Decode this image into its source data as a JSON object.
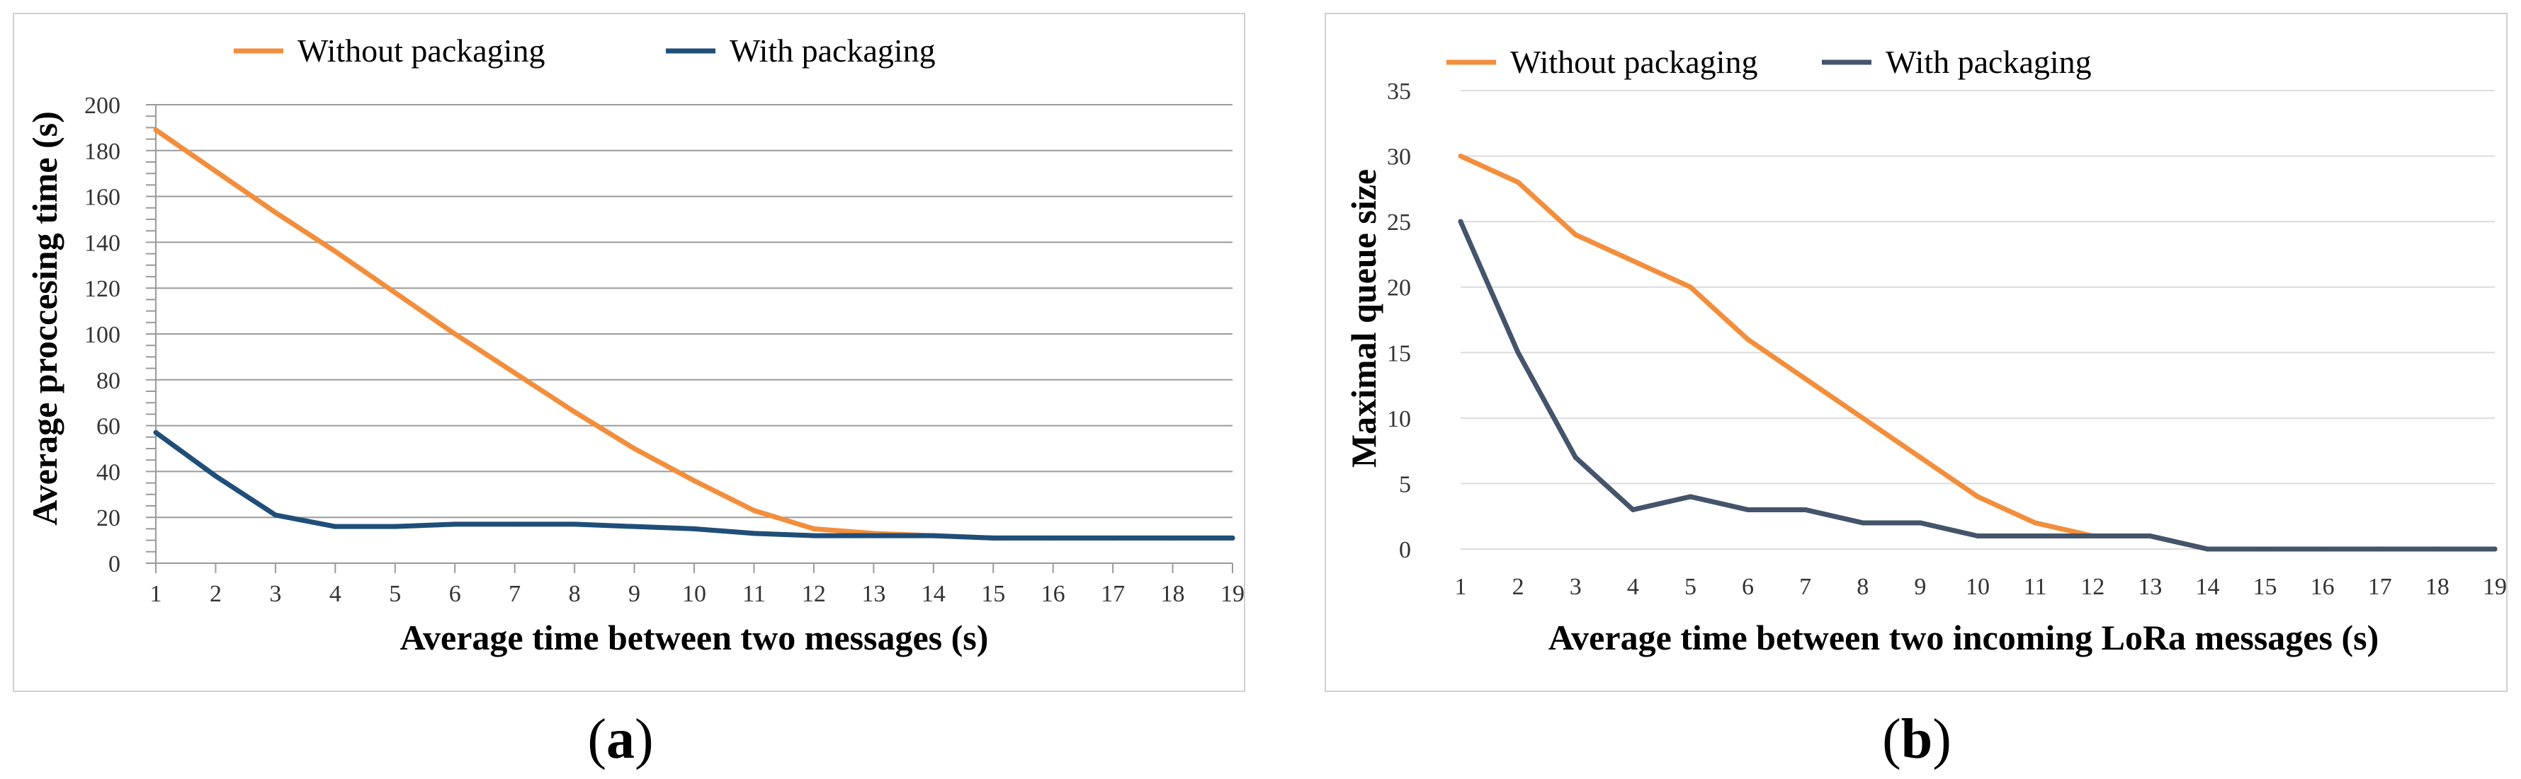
{
  "chart_data": [
    {
      "type": "line",
      "title": "",
      "xlabel": "Average time between two messages (s)",
      "ylabel": "Average proccesing time (s)",
      "x": [
        1,
        2,
        3,
        4,
        5,
        6,
        7,
        8,
        9,
        10,
        11,
        12,
        13,
        14,
        15,
        16,
        17,
        18,
        19
      ],
      "xlim": [
        1,
        19
      ],
      "ylim": [
        0,
        200
      ],
      "yticks": [
        0,
        20,
        40,
        60,
        80,
        100,
        120,
        140,
        160,
        180,
        200
      ],
      "grid": true,
      "legend_position": "top",
      "series": [
        {
          "name": "Without packaging",
          "color": "#f28e3c",
          "values": [
            189,
            171,
            153,
            136,
            118,
            100,
            83,
            66,
            50,
            36,
            23,
            15,
            13,
            12,
            11,
            11,
            11,
            11,
            11
          ]
        },
        {
          "name": "With packaging",
          "color": "#1f4e79",
          "values": [
            57,
            38,
            21,
            16,
            16,
            17,
            17,
            17,
            16,
            15,
            13,
            12,
            12,
            12,
            11,
            11,
            11,
            11,
            11
          ]
        }
      ]
    },
    {
      "type": "line",
      "title": "",
      "xlabel": "Average time between two incoming LoRa messages (s)",
      "ylabel": "Maximal queue size",
      "x": [
        1,
        2,
        3,
        4,
        5,
        6,
        7,
        8,
        9,
        10,
        11,
        12,
        13,
        14,
        15,
        16,
        17,
        18,
        19
      ],
      "xlim": [
        1,
        19
      ],
      "ylim": [
        0,
        35
      ],
      "yticks": [
        0,
        5,
        10,
        15,
        20,
        25,
        30,
        35
      ],
      "grid": true,
      "legend_position": "top",
      "series": [
        {
          "name": "Without packaging",
          "color": "#f28e3c",
          "values": [
            30,
            28,
            24,
            22,
            20,
            16,
            13,
            10,
            7,
            4,
            2,
            1,
            1,
            0,
            0,
            0,
            0,
            0,
            0
          ]
        },
        {
          "name": "With packaging",
          "color": "#44546a",
          "values": [
            25,
            15,
            7,
            3,
            4,
            3,
            3,
            2,
            2,
            1,
            1,
            1,
            1,
            0,
            0,
            0,
            0,
            0,
            0
          ]
        }
      ]
    }
  ],
  "panel_labels": [
    {
      "open": "(",
      "letter": "a",
      "close": ")"
    },
    {
      "open": "(",
      "letter": "b",
      "close": ")"
    }
  ]
}
